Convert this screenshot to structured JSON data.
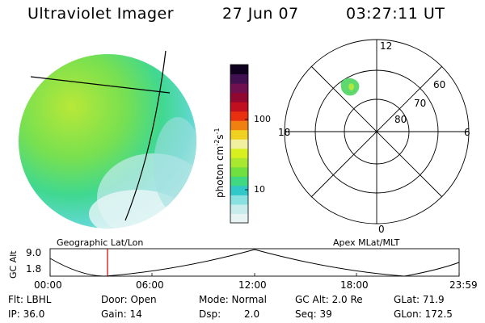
{
  "header": {
    "instrument": "Ultraviolet Imager",
    "date": "27 Jun 07",
    "time": "03:27:11 UT"
  },
  "colorbar": {
    "label": "photon cm",
    "label_sup1": "-2",
    "label_mid": "s",
    "label_sup2": "-1",
    "ticks": [
      {
        "label": "100",
        "value": 100
      },
      {
        "label": "10",
        "value": 10
      }
    ],
    "colors": [
      "#e8f4f4",
      "#c8ecec",
      "#88e0e0",
      "#30c8c8",
      "#40d880",
      "#70e040",
      "#a8e830",
      "#d8f020",
      "#f0f0a0",
      "#f0d020",
      "#f08010",
      "#e83010",
      "#c01020",
      "#900830",
      "#701050",
      "#401050",
      "#100020"
    ]
  },
  "polar_plot": {
    "mlt_labels": {
      "top": "12",
      "bottom": "0",
      "left": "18",
      "right": "6"
    },
    "lat_labels": [
      "60",
      "70",
      "80"
    ]
  },
  "geo_label": "Geographic Lat/Lon",
  "apex_label": "Apex MLat/MLT",
  "orbit": {
    "ylabel": "GC Alt",
    "y_ticks": [
      "9.0",
      "1.8"
    ],
    "x_ticks": [
      "00:00",
      "06:00",
      "12:00",
      "18:00",
      "23:59"
    ]
  },
  "info": {
    "flt": "Flt: LBHL",
    "door": "Door: Open",
    "mode": "Mode: Normal",
    "gc_alt": "GC Alt: 2.0 Re",
    "glat": "GLat: 71.9",
    "ip": "IP: 36.0",
    "gain": "Gain: 14",
    "dsp_label": "Dsp:",
    "dsp_value": "2.0",
    "seq": "Seq: 39",
    "glon": "GLon: 172.5"
  }
}
